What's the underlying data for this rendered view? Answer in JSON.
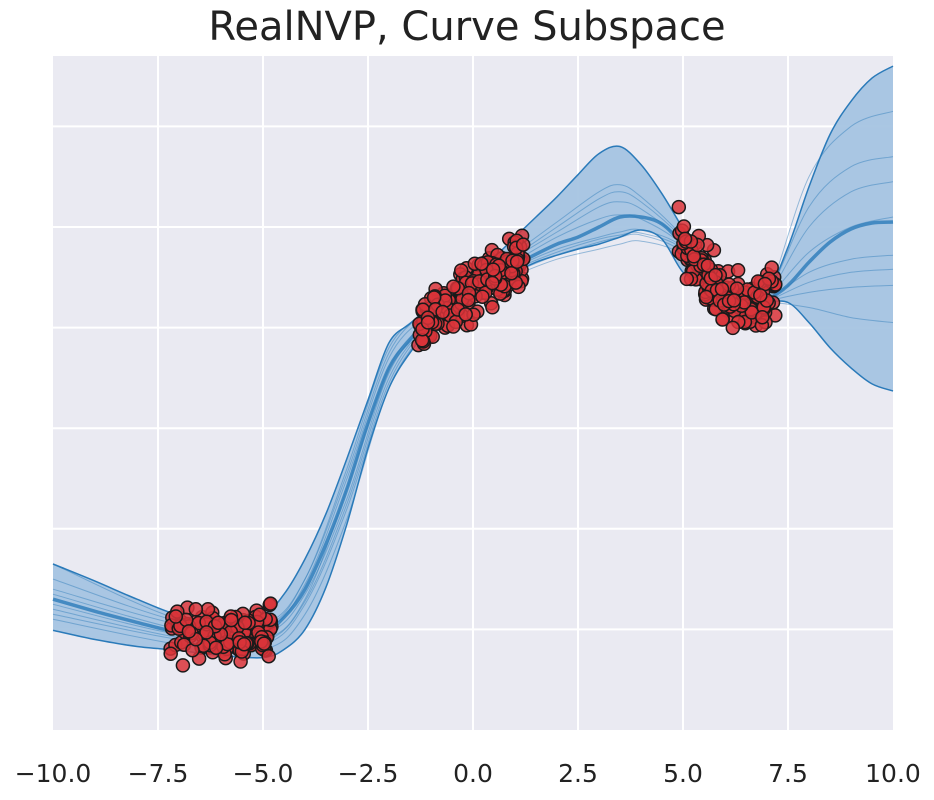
{
  "chart_data": {
    "type": "line",
    "title": "RealNVP, Curve Subspace",
    "xlabel": "",
    "ylabel": "",
    "xlim": [
      -10,
      10
    ],
    "ylim": [
      -4,
      2.7
    ],
    "x_ticks": [
      -10.0,
      -7.5,
      -5.0,
      -2.5,
      0.0,
      2.5,
      5.0,
      7.5,
      10.0
    ],
    "x_tick_labels": [
      "−10.0",
      "−7.5",
      "−5.0",
      "−2.5",
      "0.0",
      "2.5",
      "5.0",
      "7.5",
      "10.0"
    ],
    "y_gridlines": [
      -3,
      -2,
      -1,
      0,
      1,
      2
    ],
    "grid": true,
    "colors": {
      "background": "#eaeaf2",
      "grid": "#ffffff",
      "band_fill": "#a5c4e1",
      "band_edge": "#2a7ab9",
      "mean_line": "#2a7ab9",
      "sample_line": "#2a7ab9",
      "point_fill": "#d9343a",
      "point_edge": "#1a1a1a"
    },
    "mean": {
      "x": [
        -10,
        -9,
        -8,
        -7,
        -6,
        -5,
        -4.5,
        -4,
        -3.5,
        -3,
        -2.5,
        -2,
        -1.5,
        -1,
        -0.5,
        0,
        0.5,
        1,
        1.5,
        2,
        2.5,
        3,
        3.5,
        4,
        4.5,
        5,
        5.5,
        6,
        6.5,
        7,
        7.5,
        8,
        8.5,
        9,
        9.5,
        10
      ],
      "y": [
        -2.7,
        -2.82,
        -2.93,
        -3.03,
        -3.07,
        -3.03,
        -2.88,
        -2.6,
        -2.15,
        -1.6,
        -0.95,
        -0.4,
        -0.12,
        0.1,
        0.25,
        0.38,
        0.5,
        0.62,
        0.73,
        0.83,
        0.9,
        1.0,
        1.1,
        1.1,
        1.03,
        0.82,
        0.52,
        0.32,
        0.22,
        0.28,
        0.42,
        0.65,
        0.85,
        0.98,
        1.04,
        1.05
      ]
    },
    "band_upper": {
      "x": [
        -10,
        -9,
        -8,
        -7,
        -6,
        -5,
        -4.5,
        -4,
        -3.5,
        -3,
        -2.5,
        -2,
        -1.5,
        -1,
        -0.5,
        0,
        0.5,
        1,
        1.5,
        2,
        2.5,
        3,
        3.5,
        4,
        4.5,
        5,
        5.5,
        6,
        6.5,
        7,
        7.5,
        8,
        8.5,
        9,
        9.5,
        10
      ],
      "y": [
        -2.35,
        -2.52,
        -2.7,
        -2.86,
        -2.92,
        -2.85,
        -2.65,
        -2.3,
        -1.85,
        -1.3,
        -0.72,
        -0.15,
        0.04,
        0.22,
        0.4,
        0.55,
        0.7,
        0.9,
        1.1,
        1.3,
        1.52,
        1.73,
        1.8,
        1.62,
        1.33,
        0.98,
        0.6,
        0.38,
        0.34,
        0.35,
        0.8,
        1.4,
        1.92,
        2.25,
        2.48,
        2.6
      ]
    },
    "band_lower": {
      "x": [
        -10,
        -9,
        -8,
        -7,
        -6,
        -5,
        -4.5,
        -4,
        -3.5,
        -3,
        -2.5,
        -2,
        -1.5,
        -1,
        -0.5,
        0,
        0.5,
        1,
        1.5,
        2,
        2.5,
        3,
        3.5,
        4,
        4.5,
        5,
        5.5,
        6,
        6.5,
        7,
        7.5,
        8,
        8.5,
        9,
        9.5,
        10
      ],
      "y": [
        -3.01,
        -3.1,
        -3.17,
        -3.21,
        -3.26,
        -3.28,
        -3.2,
        -3.0,
        -2.58,
        -1.95,
        -1.2,
        -0.6,
        -0.25,
        0.0,
        0.17,
        0.3,
        0.42,
        0.55,
        0.65,
        0.72,
        0.78,
        0.83,
        0.9,
        0.97,
        0.88,
        0.55,
        0.42,
        0.22,
        0.15,
        0.24,
        0.25,
        0.05,
        -0.2,
        -0.4,
        -0.56,
        -0.63
      ]
    },
    "samples": [
      {
        "x": [
          -10,
          -7,
          -5,
          -4,
          -3,
          -2,
          -1,
          0,
          1,
          2,
          3,
          3.5,
          4,
          5,
          6,
          6.5,
          7,
          8,
          9,
          10
        ],
        "y": [
          -2.35,
          -2.9,
          -2.95,
          -2.5,
          -1.45,
          -0.25,
          0.2,
          0.5,
          0.75,
          1.05,
          1.35,
          1.42,
          1.3,
          0.9,
          0.35,
          0.22,
          0.3,
          1.2,
          1.6,
          1.7
        ]
      },
      {
        "x": [
          -10,
          -7,
          -5,
          -4,
          -3,
          -2,
          -1,
          0,
          1,
          2,
          3,
          3.5,
          4,
          5,
          6,
          6.5,
          7,
          8,
          9,
          10
        ],
        "y": [
          -2.6,
          -2.95,
          -3.0,
          -2.55,
          -1.5,
          -0.3,
          0.15,
          0.45,
          0.7,
          0.95,
          1.2,
          1.25,
          1.18,
          0.85,
          0.33,
          0.22,
          0.3,
          1.0,
          1.35,
          1.45
        ]
      },
      {
        "x": [
          -10,
          -7,
          -5,
          -4,
          -3,
          -2,
          -1,
          0,
          1,
          2,
          3,
          3.5,
          4,
          5,
          6,
          6.5,
          7,
          8,
          9,
          10
        ],
        "y": [
          -2.75,
          -3.05,
          -3.05,
          -2.65,
          -1.7,
          -0.45,
          0.08,
          0.38,
          0.6,
          0.78,
          0.9,
          0.95,
          0.97,
          0.8,
          0.3,
          0.2,
          0.27,
          0.55,
          0.68,
          0.72
        ]
      },
      {
        "x": [
          -10,
          -7,
          -5,
          -4,
          -3,
          -2,
          -1,
          0,
          1,
          2,
          3,
          3.5,
          4,
          5,
          6,
          6.5,
          7,
          8,
          9,
          10
        ],
        "y": [
          -2.85,
          -3.1,
          -3.15,
          -2.75,
          -1.8,
          -0.55,
          0.05,
          0.35,
          0.55,
          0.72,
          0.85,
          0.9,
          0.92,
          0.75,
          0.28,
          0.18,
          0.26,
          0.35,
          0.4,
          0.42
        ]
      },
      {
        "x": [
          -10,
          -7,
          -5,
          -4,
          -3,
          -2,
          -1,
          0,
          1,
          2,
          3,
          3.5,
          4,
          5,
          6,
          6.5,
          7,
          8,
          9,
          10
        ],
        "y": [
          -2.9,
          -3.15,
          -3.2,
          -2.85,
          -1.9,
          -0.6,
          0.02,
          0.33,
          0.52,
          0.68,
          0.78,
          0.83,
          0.86,
          0.72,
          0.26,
          0.17,
          0.25,
          0.2,
          0.1,
          0.05
        ]
      },
      {
        "x": [
          -10,
          -7,
          -5,
          -4,
          -3,
          -2,
          -1,
          0,
          1,
          2,
          3,
          3.5,
          4,
          5,
          6,
          6.5,
          7,
          8,
          9,
          10
        ],
        "y": [
          -2.65,
          -3.0,
          -3.1,
          -2.7,
          -1.6,
          -0.4,
          0.1,
          0.42,
          0.66,
          0.9,
          1.08,
          1.12,
          1.08,
          0.82,
          0.32,
          0.21,
          0.29,
          0.75,
          1.0,
          1.1
        ]
      },
      {
        "x": [
          -10,
          -7,
          -5,
          -4,
          -3,
          -2,
          -1,
          0,
          1,
          2,
          3,
          3.5,
          4,
          5,
          6,
          6.5,
          7,
          8,
          9,
          10
        ],
        "y": [
          -2.5,
          -2.92,
          -2.98,
          -2.5,
          -1.4,
          -0.2,
          0.18,
          0.48,
          0.72,
          1.0,
          1.28,
          1.35,
          1.25,
          0.88,
          0.34,
          0.22,
          0.3,
          1.5,
          2.0,
          2.15
        ]
      },
      {
        "x": [
          -10,
          -7,
          -5,
          -4,
          -3,
          -2,
          -1,
          0,
          1,
          2,
          3,
          3.5,
          4,
          5,
          6,
          6.5,
          7,
          8,
          9,
          10
        ],
        "y": [
          -2.8,
          -3.08,
          -3.12,
          -2.72,
          -1.75,
          -0.5,
          0.06,
          0.36,
          0.58,
          0.75,
          0.88,
          0.92,
          0.94,
          0.78,
          0.29,
          0.19,
          0.26,
          0.45,
          0.55,
          0.58
        ]
      }
    ],
    "scatter_clusters": [
      {
        "x_range": [
          -7.2,
          -4.8
        ],
        "n": 170,
        "seed": 11
      },
      {
        "x_range": [
          -1.3,
          1.2
        ],
        "n": 210,
        "seed": 23
      },
      {
        "x_range": [
          4.9,
          7.2
        ],
        "n": 170,
        "seed": 37
      }
    ]
  }
}
